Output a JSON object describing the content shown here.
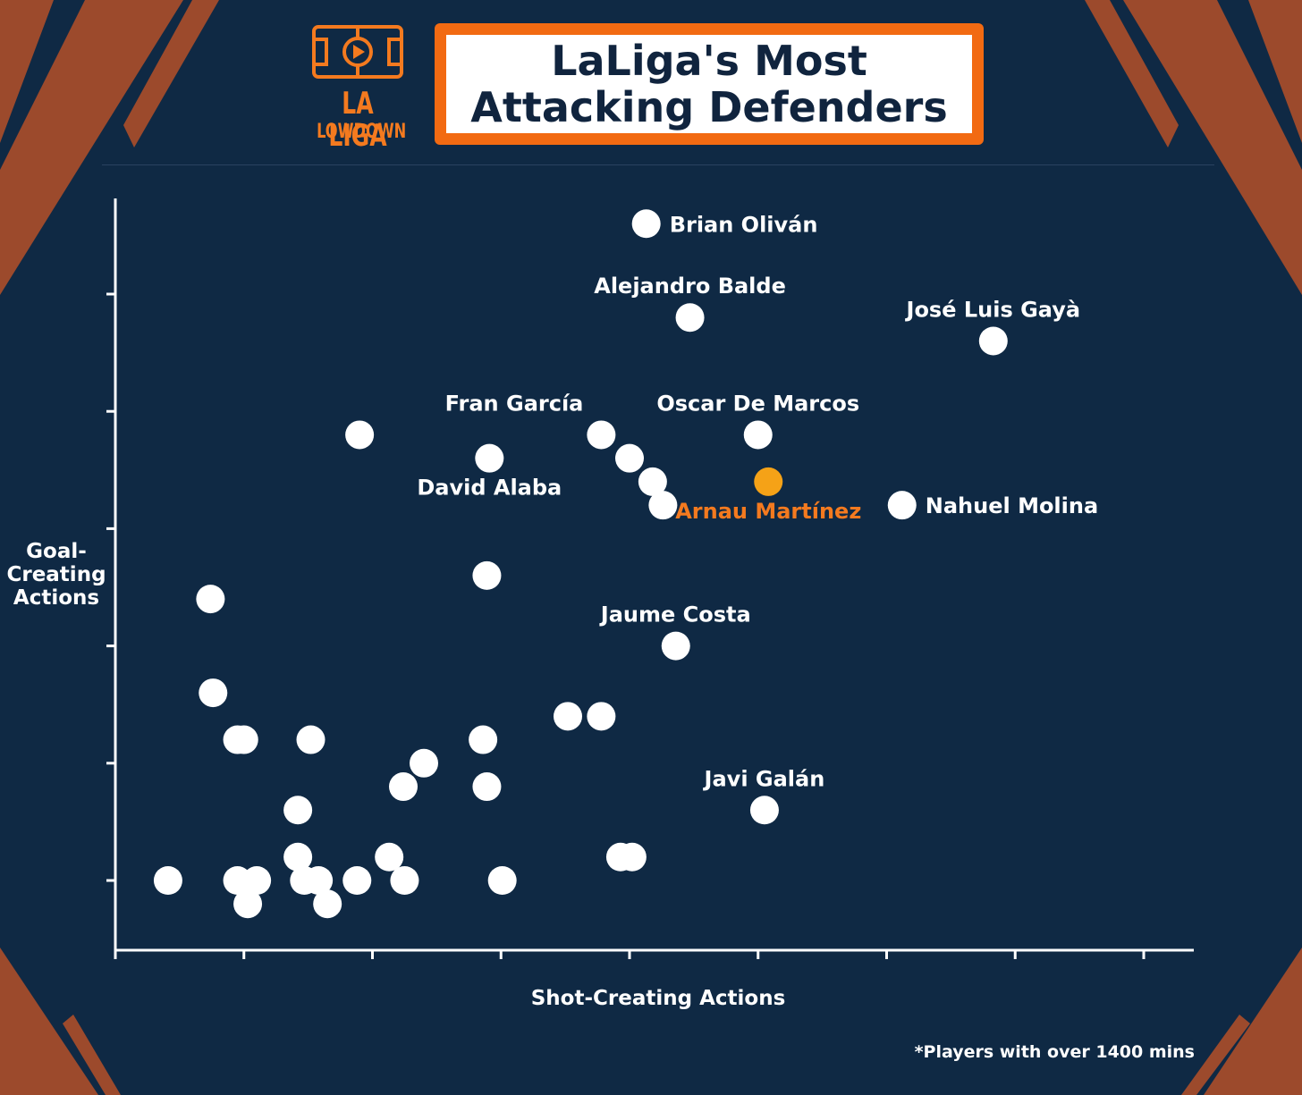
{
  "header": {
    "logo_line1": "LA LIGA",
    "logo_line2": "LOWDOWN",
    "title_line1": "LaLiga's Most",
    "title_line2": "Attacking Defenders"
  },
  "footnote": "*Players with over 1400 mins",
  "colors": {
    "background": "#0f2944",
    "accent": "#f26a12",
    "highlight_point": "#f5a217",
    "highlight_label": "#f47a1f",
    "point": "#ffffff",
    "decor": "#9c4a2c"
  },
  "logo": {
    "icon": "football-pitch-play-icon"
  },
  "chart_data": {
    "type": "scatter",
    "title": "LaLiga's Most Attacking Defenders",
    "xlabel": "Shot-Creating Actions",
    "ylabel": "Goal-\nCreating\nActions",
    "xlim": [
      0,
      8.4
    ],
    "ylim": [
      -0.6,
      5.8
    ],
    "x_ticks": [
      0,
      1,
      2,
      3,
      4,
      5,
      6,
      7,
      8
    ],
    "y_ticks": [
      0,
      1,
      2,
      3,
      4,
      5
    ],
    "tick_labels_shown": false,
    "grid": false,
    "points": [
      {
        "x": 4.13,
        "y": 5.6,
        "label": "Brian Oliván",
        "label_pos": "right"
      },
      {
        "x": 4.47,
        "y": 4.8,
        "label": "Alejandro Balde",
        "label_pos": "above"
      },
      {
        "x": 6.83,
        "y": 4.6,
        "label": "José Luis Gayà",
        "label_pos": "above"
      },
      {
        "x": 3.78,
        "y": 3.8,
        "label": "Fran García",
        "label_pos": "above-left"
      },
      {
        "x": 5.0,
        "y": 3.8,
        "label": "Oscar De Marcos",
        "label_pos": "above"
      },
      {
        "x": 2.91,
        "y": 3.6,
        "label": "David Alaba",
        "label_pos": "below"
      },
      {
        "x": 5.08,
        "y": 3.4,
        "label": "Arnau Martínez",
        "label_pos": "below",
        "highlight": true
      },
      {
        "x": 6.12,
        "y": 3.2,
        "label": "Nahuel Molina",
        "label_pos": "right"
      },
      {
        "x": 4.36,
        "y": 2.0,
        "label": "Jaume Costa",
        "label_pos": "above"
      },
      {
        "x": 5.05,
        "y": 0.6,
        "label": "Javi Galán",
        "label_pos": "above"
      },
      {
        "x": 1.9,
        "y": 3.8
      },
      {
        "x": 4.0,
        "y": 3.6
      },
      {
        "x": 4.18,
        "y": 3.4
      },
      {
        "x": 4.26,
        "y": 3.2
      },
      {
        "x": 2.89,
        "y": 2.6
      },
      {
        "x": 0.74,
        "y": 2.4
      },
      {
        "x": 0.76,
        "y": 1.6
      },
      {
        "x": 0.95,
        "y": 1.2
      },
      {
        "x": 1.0,
        "y": 1.2
      },
      {
        "x": 1.52,
        "y": 1.2
      },
      {
        "x": 2.86,
        "y": 1.2
      },
      {
        "x": 3.52,
        "y": 1.4
      },
      {
        "x": 3.78,
        "y": 1.4
      },
      {
        "x": 2.4,
        "y": 1.0
      },
      {
        "x": 2.24,
        "y": 0.8
      },
      {
        "x": 2.89,
        "y": 0.8
      },
      {
        "x": 1.42,
        "y": 0.6
      },
      {
        "x": 1.42,
        "y": 0.2
      },
      {
        "x": 2.13,
        "y": 0.2
      },
      {
        "x": 3.93,
        "y": 0.2
      },
      {
        "x": 4.02,
        "y": 0.2
      },
      {
        "x": 0.41,
        "y": 0.0
      },
      {
        "x": 0.95,
        "y": 0.0
      },
      {
        "x": 1.1,
        "y": 0.0
      },
      {
        "x": 1.47,
        "y": 0.0
      },
      {
        "x": 1.58,
        "y": 0.0
      },
      {
        "x": 1.88,
        "y": 0.0
      },
      {
        "x": 2.25,
        "y": 0.0
      },
      {
        "x": 3.01,
        "y": 0.0
      },
      {
        "x": 1.03,
        "y": -0.2
      },
      {
        "x": 1.65,
        "y": -0.2
      }
    ]
  }
}
